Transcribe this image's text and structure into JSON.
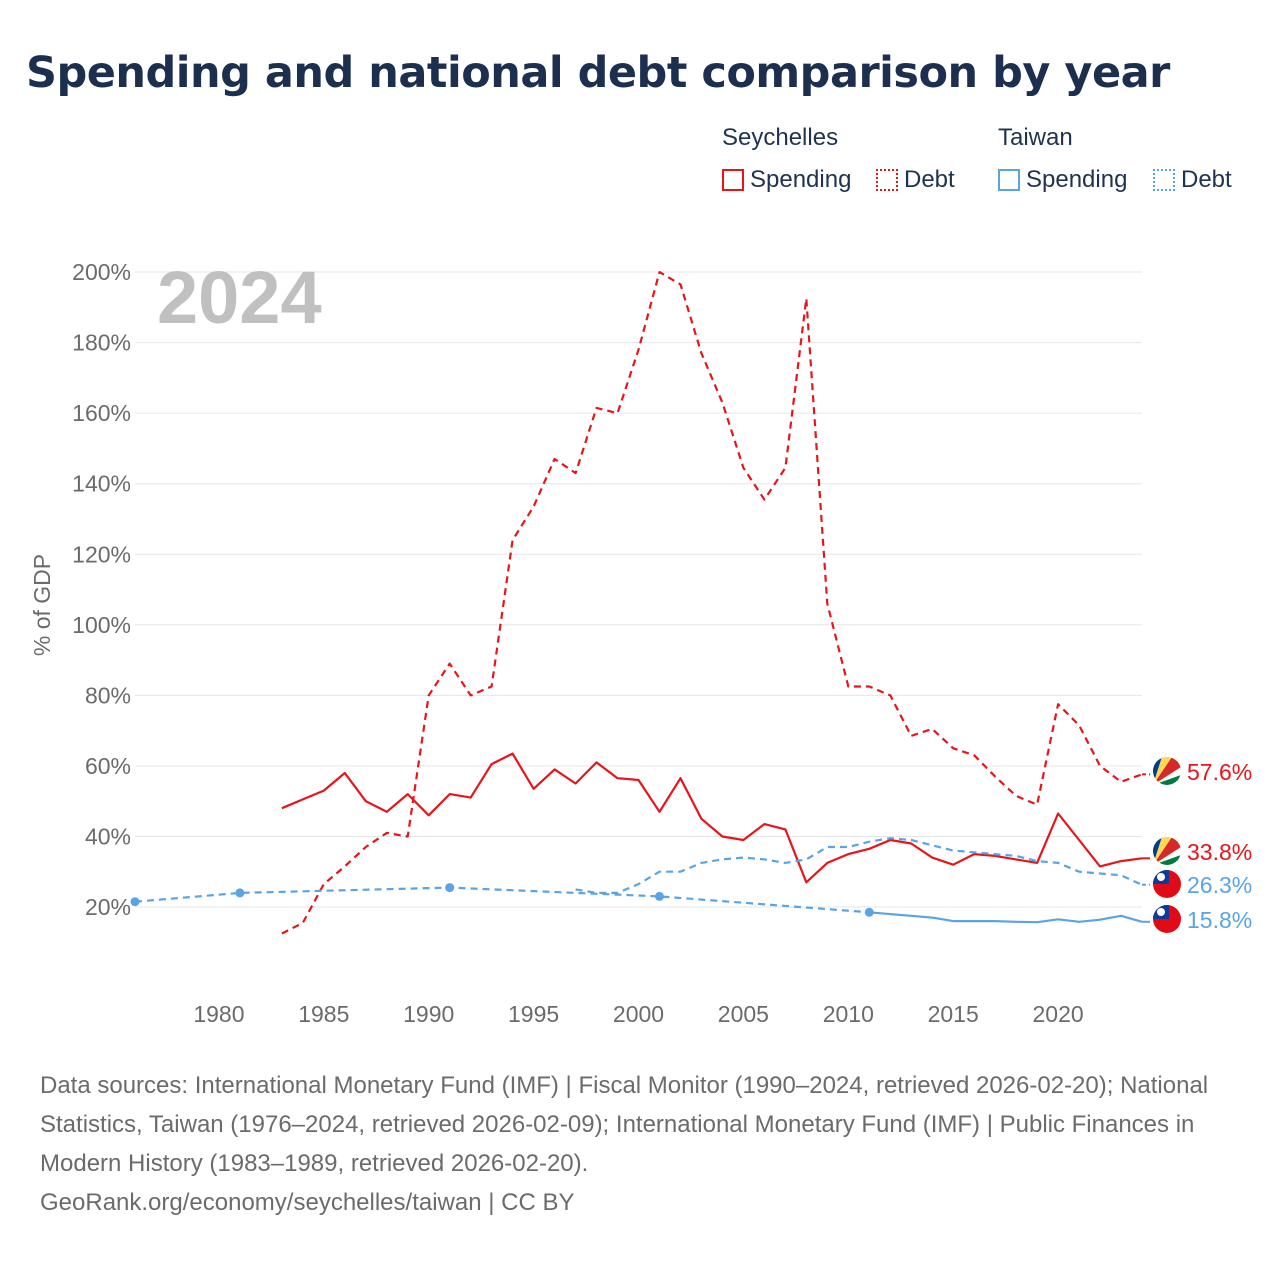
{
  "title": "Spending and national debt comparison by year",
  "legend": {
    "groups": [
      {
        "name": "Seychelles",
        "entries": [
          "Spending",
          "Debt"
        ]
      },
      {
        "name": "Taiwan",
        "entries": [
          "Spending",
          "Debt"
        ]
      }
    ]
  },
  "colors": {
    "seychelles": "#e8141b",
    "taiwan": "#5aa4e4",
    "grid": "#e6e6e6",
    "year_watermark": "#c0c0c0"
  },
  "footer": {
    "sources": "Data sources: International Monetary Fund (IMF) | Fiscal Monitor (1990–2024, retrieved 2026-02-20); National Statistics, Taiwan (1976–2024, retrieved 2026-02-09); International Monetary Fund (IMF) | Public Finances in Modern History (1983–1989, retrieved 2026-02-20).",
    "link": "GeoRank.org/economy/seychelles/taiwan | CC BY"
  },
  "chart_data": {
    "type": "line",
    "title": "Spending and national debt comparison by year",
    "ylabel": "% of GDP",
    "xlabel": "",
    "year_label": "2024",
    "xlim": [
      1976,
      2024
    ],
    "ylim": [
      10,
      200
    ],
    "x_ticks": [
      1980,
      1985,
      1990,
      1995,
      2000,
      2005,
      2010,
      2015,
      2020
    ],
    "y_ticks": [
      20,
      40,
      60,
      80,
      100,
      120,
      140,
      160,
      180,
      200
    ],
    "y_tick_labels": [
      "20%",
      "40%",
      "60%",
      "80%",
      "100%",
      "120%",
      "140%",
      "160%",
      "180%",
      "200%"
    ],
    "series": [
      {
        "name": "Seychelles Debt",
        "country": "Seychelles",
        "measure": "Debt",
        "style": "dashed",
        "x": [
          1983,
          1984,
          1985,
          1986,
          1987,
          1988,
          1989,
          1990,
          1991,
          1992,
          1993,
          1994,
          1995,
          1996,
          1997,
          1998,
          1999,
          2000,
          2001,
          2002,
          2003,
          2004,
          2005,
          2006,
          2007,
          2008,
          2009,
          2010,
          2011,
          2012,
          2013,
          2014,
          2015,
          2016,
          2017,
          2018,
          2019,
          2020,
          2021,
          2022,
          2023,
          2024
        ],
        "values": [
          12.5,
          15.5,
          26.5,
          31.5,
          37,
          41,
          40,
          80,
          89,
          80,
          82.5,
          124,
          133.5,
          147,
          143,
          161.5,
          160,
          178,
          200,
          196.5,
          177,
          163,
          144.5,
          135.5,
          144.5,
          192.5,
          106,
          82.5,
          82.5,
          80,
          68.5,
          70.5,
          65,
          63,
          57,
          51.5,
          49,
          77.5,
          71.5,
          60,
          55.5,
          57.6
        ],
        "end_label": "57.6%"
      },
      {
        "name": "Seychelles Spending",
        "country": "Seychelles",
        "measure": "Spending",
        "style": "solid",
        "x": [
          1983,
          1984,
          1985,
          1986,
          1987,
          1988,
          1989,
          1990,
          1991,
          1992,
          1993,
          1994,
          1995,
          1996,
          1997,
          1998,
          1999,
          2000,
          2001,
          2002,
          2003,
          2004,
          2005,
          2006,
          2007,
          2008,
          2009,
          2010,
          2011,
          2012,
          2013,
          2014,
          2015,
          2016,
          2017,
          2018,
          2019,
          2020,
          2021,
          2022,
          2023,
          2024
        ],
        "values": [
          48,
          50.5,
          53,
          58,
          50,
          47,
          52,
          46,
          52,
          51,
          60.5,
          63.5,
          53.5,
          59,
          55,
          61,
          56.5,
          56,
          47,
          56.5,
          45,
          40,
          39,
          43.5,
          42,
          27,
          32.5,
          35,
          36.5,
          39,
          38,
          34,
          32,
          35,
          34.5,
          33.5,
          32.5,
          46.5,
          39,
          31.5,
          33,
          33.8
        ],
        "end_label": "33.8%"
      },
      {
        "name": "Taiwan Debt",
        "country": "Taiwan",
        "measure": "Debt",
        "style": "dashed",
        "x": [
          1976,
          1981,
          1991,
          2001,
          2011,
          1997,
          1998,
          1999,
          2000,
          2001,
          2002,
          2003,
          2004,
          2005,
          2006,
          2007,
          2008,
          2009,
          2010,
          2011,
          2012,
          2013,
          2014,
          2015,
          2016,
          2017,
          2018,
          2019,
          2020,
          2021,
          2022,
          2023,
          2024
        ],
        "values": [
          21.5,
          24,
          25.5,
          23,
          18.5,
          25,
          24,
          24,
          26.5,
          30,
          30,
          32.5,
          33.5,
          34,
          33.5,
          32.5,
          33.5,
          37,
          37,
          38.5,
          39.5,
          39,
          37.5,
          36,
          35.5,
          35,
          34.5,
          33,
          32.5,
          30,
          29.5,
          29,
          26.3
        ],
        "segments": [
          {
            "x": [
              1976,
              1981,
              1991,
              2001,
              2011
            ],
            "values": [
              21.5,
              24,
              25.5,
              23,
              18.5
            ],
            "markers": true
          },
          {
            "x": [
              1997,
              1998,
              1999,
              2000,
              2001,
              2002,
              2003,
              2004,
              2005,
              2006,
              2007,
              2008,
              2009,
              2010,
              2011,
              2012,
              2013,
              2014,
              2015,
              2016,
              2017,
              2018,
              2019,
              2020,
              2021,
              2022,
              2023,
              2024
            ],
            "values": [
              25,
              24,
              24,
              26.5,
              30,
              30,
              32.5,
              33.5,
              34,
              33.5,
              32.5,
              33.5,
              37,
              37,
              38.5,
              39.5,
              39,
              37.5,
              36,
              35.5,
              35,
              34.5,
              33,
              32.5,
              30,
              29.5,
              29,
              26.3
            ],
            "markers": false
          }
        ],
        "end_label": "26.3%"
      },
      {
        "name": "Taiwan Spending",
        "country": "Taiwan",
        "measure": "Spending",
        "style": "solid",
        "x": [
          2011,
          2012,
          2013,
          2014,
          2015,
          2016,
          2017,
          2018,
          2019,
          2020,
          2021,
          2022,
          2023,
          2024
        ],
        "values": [
          18.5,
          18,
          17.5,
          17,
          16,
          16,
          16,
          15.8,
          15.7,
          16.5,
          15.8,
          16.4,
          17.5,
          15.8
        ],
        "end_label": "15.8%"
      }
    ]
  }
}
